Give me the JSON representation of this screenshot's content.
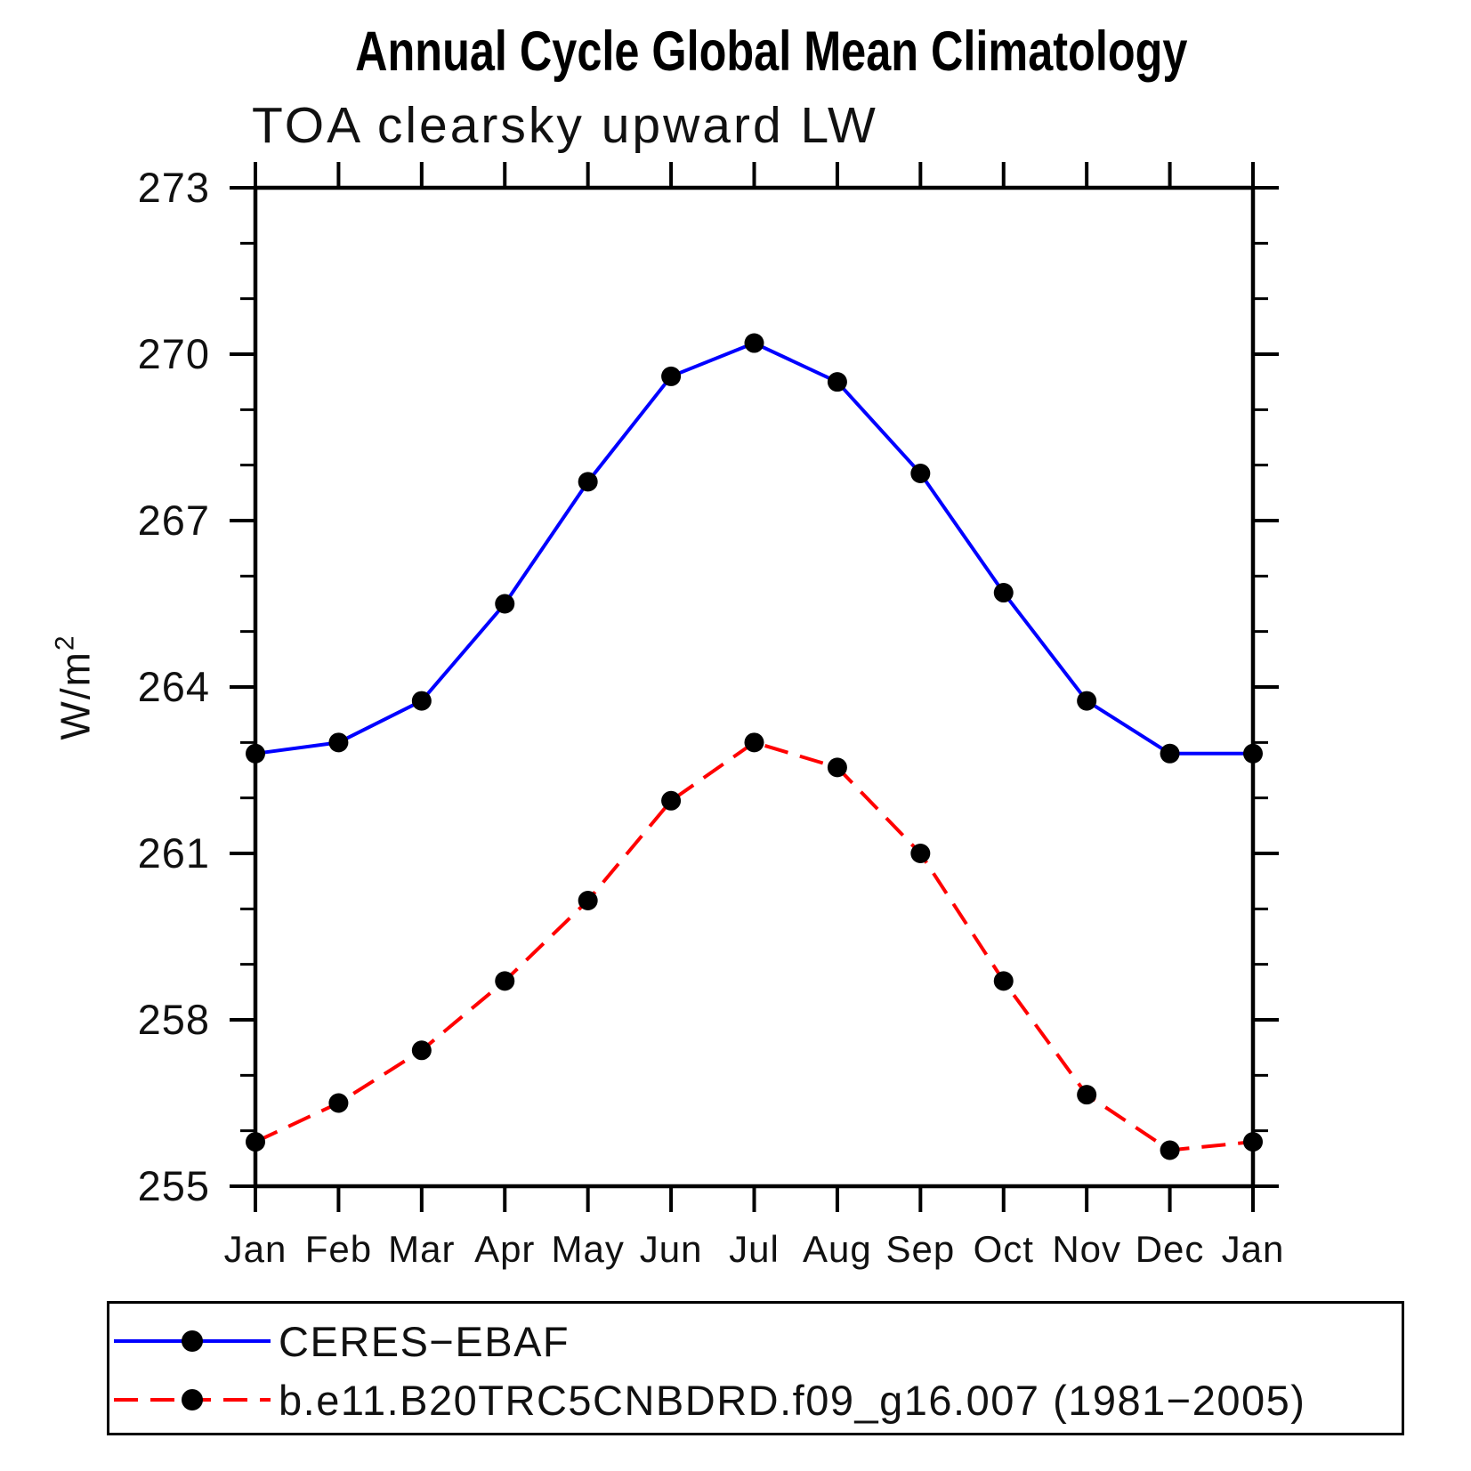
{
  "header": {
    "title": "Annual Cycle Global Mean Climatology",
    "subtitle": "TOA clearsky upward LW"
  },
  "axes": {
    "ylabel_base": "W/m",
    "ylabel_sup": "2"
  },
  "colors": {
    "axis": "#000000",
    "marker": "#000000",
    "text": "#111111",
    "series_obs": "#0000ff",
    "series_model": "#ff0000"
  },
  "chart_data": {
    "type": "line",
    "title": "Annual Cycle Global Mean Climatology",
    "subtitle": "TOA clearsky upward LW",
    "ylabel": "W/m²",
    "xlabel": "",
    "categories": [
      "Jan",
      "Feb",
      "Mar",
      "Apr",
      "May",
      "Jun",
      "Jul",
      "Aug",
      "Sep",
      "Oct",
      "Nov",
      "Dec",
      "Jan"
    ],
    "ylim": [
      255,
      273
    ],
    "yticks_major": [
      255,
      258,
      261,
      264,
      267,
      270,
      273
    ],
    "ytick_minor_step": 1,
    "grid": false,
    "legend_position": "bottom",
    "series": [
      {
        "name": "CERES−EBAF",
        "color": "#0000ff",
        "style": "solid",
        "marker": "circle",
        "marker_color": "#000000",
        "values": [
          262.8,
          263.0,
          263.75,
          265.5,
          267.7,
          269.6,
          270.2,
          269.5,
          267.85,
          265.7,
          263.75,
          262.8,
          262.8
        ]
      },
      {
        "name": "b.e11.B20TRC5CNBDRD.f09_g16.007 (1981−2005)",
        "color": "#ff0000",
        "style": "dashed",
        "marker": "circle",
        "marker_color": "#000000",
        "values": [
          255.8,
          256.5,
          257.45,
          258.7,
          260.15,
          261.95,
          263.0,
          262.55,
          261.0,
          258.7,
          256.65,
          255.65,
          255.8
        ]
      }
    ]
  }
}
